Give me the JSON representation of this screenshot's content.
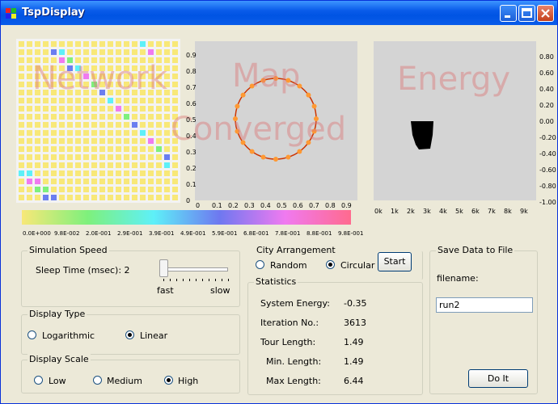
{
  "window": {
    "title": "TspDisplay"
  },
  "panels": {
    "network": {
      "label": "Network"
    },
    "map": {
      "label": "Map",
      "status": "Converged",
      "yticks": [
        "0.9",
        "0.8",
        "0.7",
        "0.6",
        "0.5",
        "0.4",
        "0.3",
        "0.2",
        "0.1",
        "0"
      ],
      "xticks": [
        "0",
        "0.1",
        "0.2",
        "0.3",
        "0.4",
        "0.5",
        "0.6",
        "0.7",
        "0.8",
        "0.9"
      ]
    },
    "energy": {
      "label": "Energy",
      "yticks": [
        "0.80",
        "0.60",
        "0.40",
        "0.20",
        "0.00",
        "-0.20",
        "-0.40",
        "-0.60",
        "-0.80",
        "-1.00"
      ],
      "xticks": [
        "0k",
        "1k",
        "2k",
        "3k",
        "4k",
        "5k",
        "6k",
        "7k",
        "8k",
        "9k"
      ]
    }
  },
  "colorbar": {
    "ticks": [
      "0.0E+000",
      "9.8E-002",
      "2.0E-001",
      "2.9E-001",
      "3.9E-001",
      "4.9E-001",
      "5.9E-001",
      "6.8E-001",
      "7.8E-001",
      "8.8E-001",
      "9.8E-001"
    ]
  },
  "simulation_speed": {
    "title": "Simulation Speed",
    "sleep_label": "Sleep Time (msec): 2",
    "fast": "fast",
    "slow": "slow",
    "slider_level": 0
  },
  "display_type": {
    "title": "Display Type",
    "options": [
      "Logarithmic",
      "Linear"
    ],
    "selected": "Linear"
  },
  "display_scale": {
    "title": "Display Scale",
    "options": [
      "Low",
      "Medium",
      "High"
    ],
    "selected": "High"
  },
  "city_arrangement": {
    "title": "City Arrangement",
    "options": [
      "Random",
      "Circular"
    ],
    "selected": "Circular",
    "start_label": "Start"
  },
  "statistics": {
    "title": "Statistics",
    "rows": [
      {
        "label": "System Energy:",
        "value": "-0.35"
      },
      {
        "label": "Iteration No.:",
        "value": "3613"
      },
      {
        "label": "Tour Length:",
        "value": "1.49"
      },
      {
        "label": "Min. Length:",
        "value": "1.49"
      },
      {
        "label": "Max Length:",
        "value": "6.44"
      }
    ]
  },
  "save": {
    "title": "Save Data to File",
    "filename_label": "filename:",
    "filename_value": "run2",
    "button_label": "Do It"
  },
  "colors": {
    "accent": "#0054e3",
    "cell_bg": "#f8e878",
    "city": "#ff9933",
    "tour": "#cc3300"
  }
}
